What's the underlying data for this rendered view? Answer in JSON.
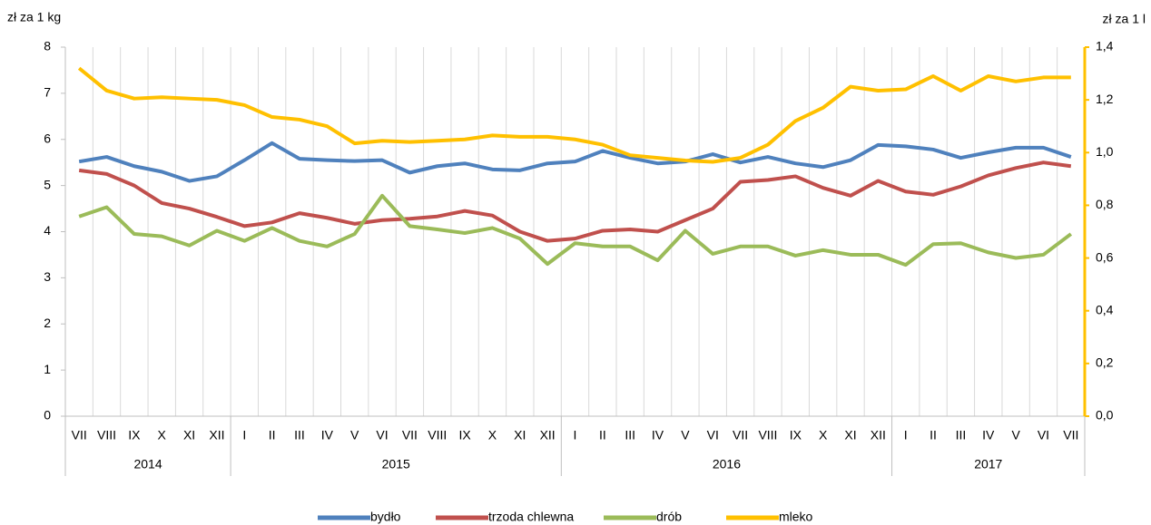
{
  "chart_data": {
    "type": "line",
    "y_label": "zł za 1 kg",
    "y2_label": "zł za 1 l",
    "categories": [
      "VII",
      "VIII",
      "IX",
      "X",
      "XI",
      "XII",
      "I",
      "II",
      "III",
      "IV",
      "V",
      "VI",
      "VII",
      "VIII",
      "IX",
      "X",
      "XI",
      "XII",
      "I",
      "II",
      "III",
      "IV",
      "V",
      "VI",
      "VII",
      "VIII",
      "IX",
      "X",
      "XI",
      "XII",
      "I",
      "II",
      "III",
      "IV",
      "V",
      "VI",
      "VII"
    ],
    "category_groups": [
      "2014",
      "2014",
      "2014",
      "2014",
      "2014",
      "2014",
      "2015",
      "2015",
      "2015",
      "2015",
      "2015",
      "2015",
      "2015",
      "2015",
      "2015",
      "2015",
      "2015",
      "2015",
      "2016",
      "2016",
      "2016",
      "2016",
      "2016",
      "2016",
      "2016",
      "2016",
      "2016",
      "2016",
      "2016",
      "2016",
      "2017",
      "2017",
      "2017",
      "2017",
      "2017",
      "2017",
      "2017"
    ],
    "ylim": [
      0,
      8
    ],
    "yticks": [
      0,
      1,
      2,
      3,
      4,
      5,
      6,
      7,
      8
    ],
    "y2lim": [
      0,
      1.4
    ],
    "y2ticks": [
      {
        "value": 0,
        "label": "0,0"
      },
      {
        "value": 0.2,
        "label": "0,2"
      },
      {
        "value": 0.4,
        "label": "0,4"
      },
      {
        "value": 0.6,
        "label": "0,6"
      },
      {
        "value": 0.8,
        "label": "0,8"
      },
      {
        "value": 1,
        "label": "1,0"
      },
      {
        "value": 1.2,
        "label": "1,2"
      },
      {
        "value": 1.4,
        "label": "1,4"
      }
    ],
    "grid": true,
    "legend": "bottom",
    "series": [
      {
        "name": "bydło",
        "color": "#4f81bd",
        "values": [
          5.52,
          5.62,
          5.42,
          5.3,
          5.1,
          5.2,
          5.55,
          5.92,
          5.58,
          5.55,
          5.53,
          5.55,
          5.28,
          5.42,
          5.48,
          5.35,
          5.33,
          5.48,
          5.52,
          5.75,
          5.6,
          5.48,
          5.52,
          5.68,
          5.5,
          5.62,
          5.48,
          5.4,
          5.55,
          5.88,
          5.85,
          5.78,
          5.6,
          5.72,
          5.82,
          5.82,
          5.62
        ]
      },
      {
        "name": "trzoda chlewna",
        "color": "#c0504d",
        "values": [
          5.33,
          5.25,
          5.0,
          4.62,
          4.5,
          4.32,
          4.12,
          4.2,
          4.4,
          4.3,
          4.17,
          4.25,
          4.28,
          4.33,
          4.45,
          4.35,
          4.0,
          3.8,
          3.85,
          4.02,
          4.05,
          4.0,
          4.25,
          4.5,
          5.08,
          5.12,
          5.2,
          4.95,
          4.78,
          5.1,
          4.87,
          4.8,
          4.98,
          5.22,
          5.38,
          5.5,
          5.42
        ]
      },
      {
        "name": "drób",
        "color": "#9bbb59",
        "values": [
          4.33,
          4.53,
          3.95,
          3.9,
          3.7,
          4.02,
          3.8,
          4.08,
          3.8,
          3.68,
          3.95,
          4.78,
          4.12,
          4.05,
          3.97,
          4.08,
          3.85,
          3.3,
          3.75,
          3.68,
          3.68,
          3.38,
          4.02,
          3.52,
          3.68,
          3.68,
          3.48,
          3.6,
          3.5,
          3.5,
          3.28,
          3.73,
          3.75,
          3.55,
          3.43,
          3.5,
          3.95
        ]
      },
      {
        "name": "mleko",
        "color": "#ffc000",
        "axis": "y2",
        "values": [
          1.32,
          1.235,
          1.205,
          1.21,
          1.205,
          1.2,
          1.18,
          1.135,
          1.125,
          1.1,
          1.035,
          1.045,
          1.04,
          1.045,
          1.05,
          1.065,
          1.06,
          1.06,
          1.05,
          1.03,
          0.99,
          0.98,
          0.97,
          0.965,
          0.98,
          1.03,
          1.12,
          1.17,
          1.25,
          1.235,
          1.24,
          1.29,
          1.235,
          1.29,
          1.27,
          1.285,
          1.285
        ]
      }
    ]
  }
}
